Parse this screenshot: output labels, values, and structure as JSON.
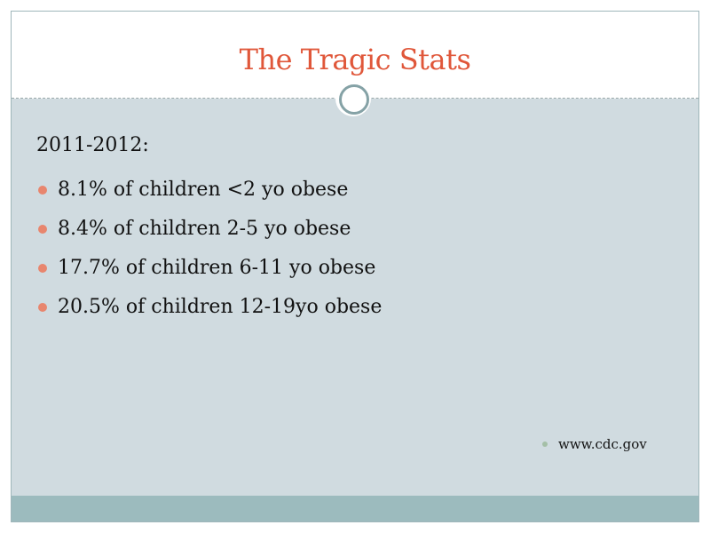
{
  "slide": {
    "title": "The Tragic Stats",
    "subheading": "2011-2012:",
    "bullets": [
      "8.1% of children <2 yo obese",
      "8.4% of children 2-5 yo obese",
      "17.7% of children 6-11 yo obese",
      "20.5% of children 12-19yo obese"
    ],
    "source": "www.cdc.gov"
  },
  "colors": {
    "title": "#e0573a",
    "content_background": "#d0dbe0",
    "footer_bar": "#9cbbbe",
    "bullet": "#e8866e",
    "source_bullet": "#a4bfa7",
    "ring": "#85a2a6"
  }
}
